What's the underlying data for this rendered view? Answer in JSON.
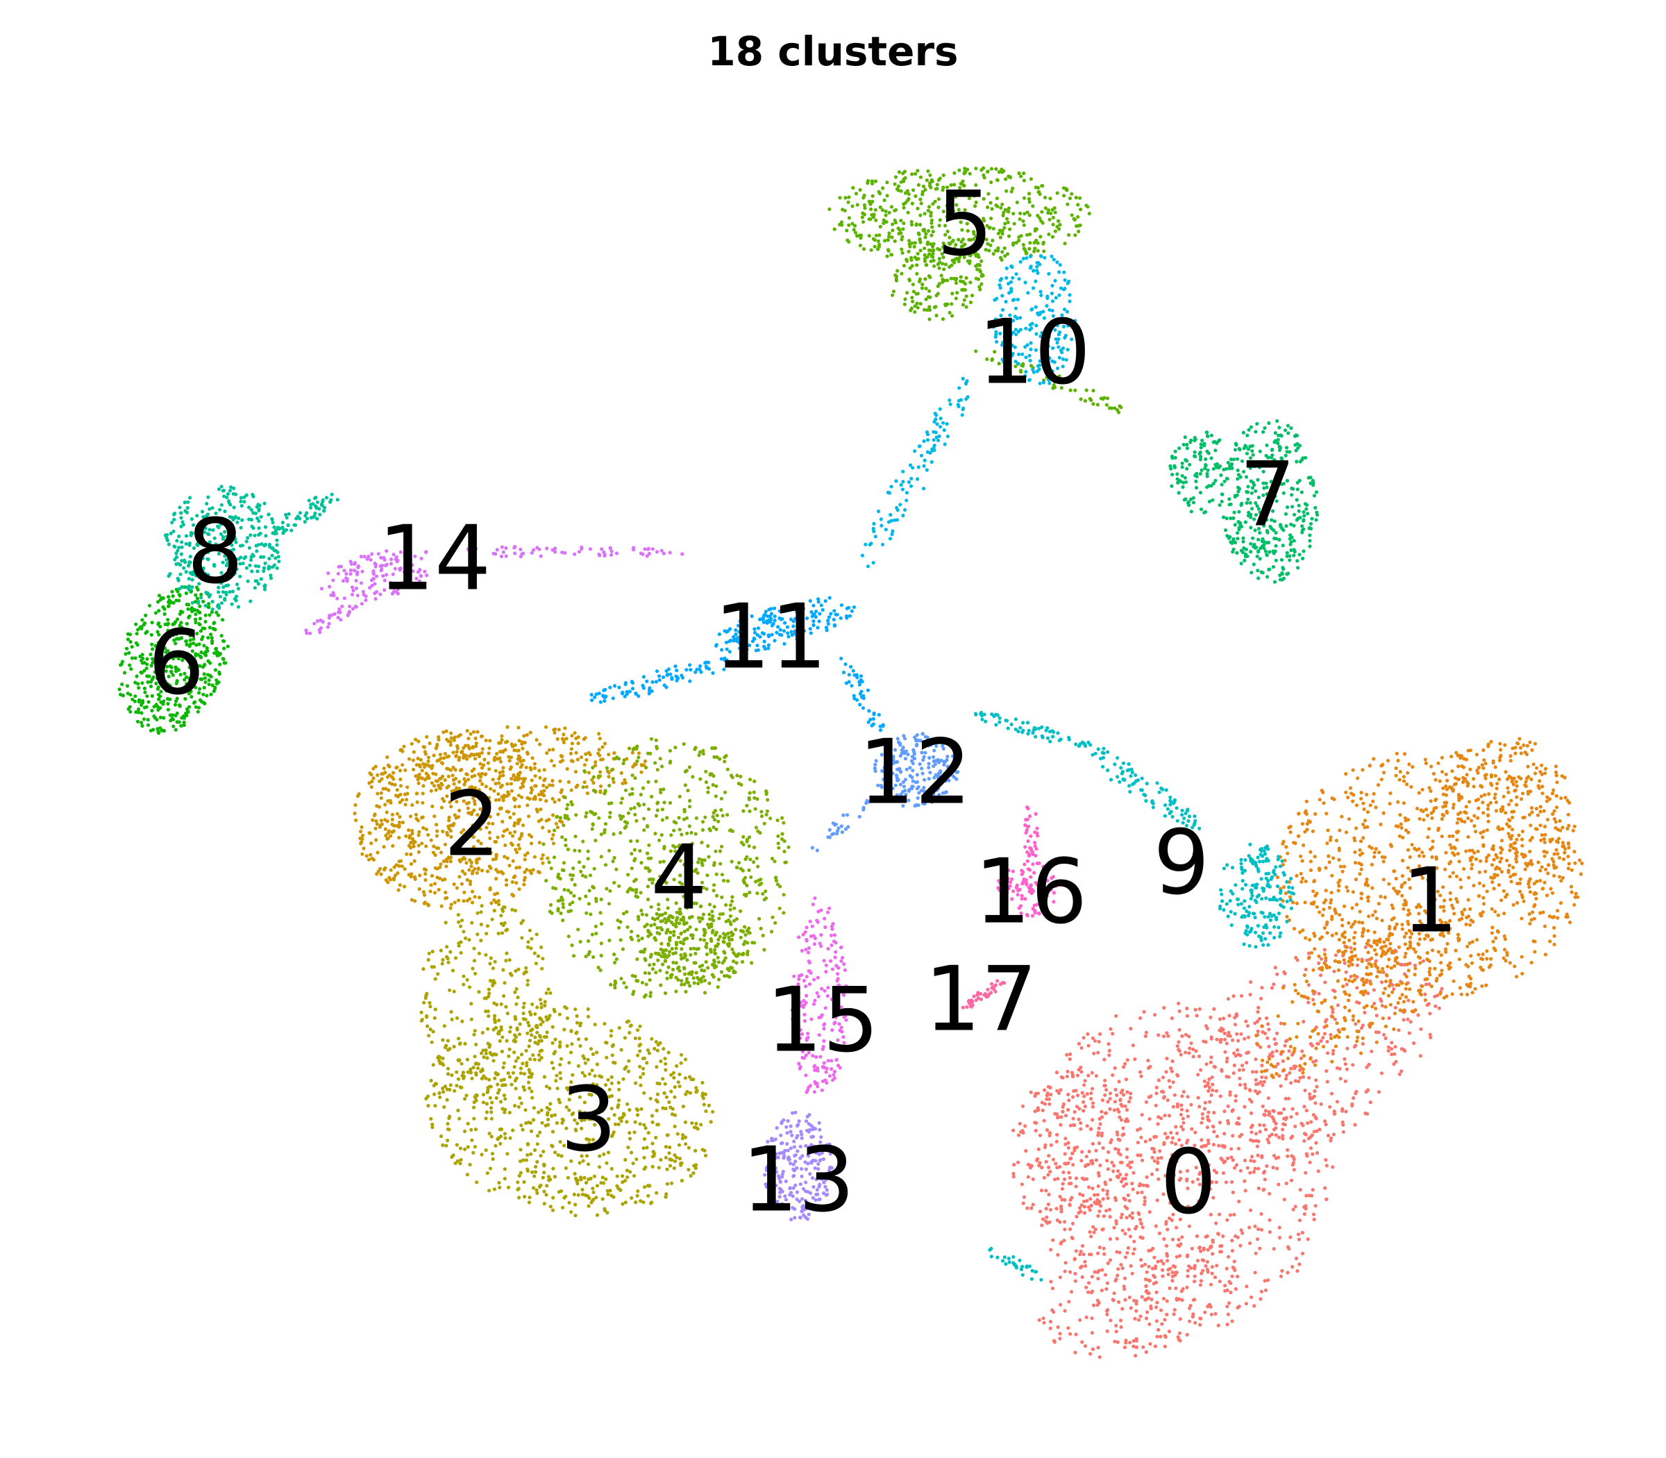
{
  "chart_data": {
    "type": "scatter",
    "title": "18 clusters",
    "xlabel": "",
    "ylabel": "",
    "grid": false,
    "axes_visible": false,
    "legend": "none",
    "point_size": "small",
    "clusters": [
      {
        "name": "0",
        "color": "#F8766D"
      },
      {
        "name": "1",
        "color": "#E68613"
      },
      {
        "name": "2",
        "color": "#CD9600"
      },
      {
        "name": "3",
        "color": "#ABA300"
      },
      {
        "name": "4",
        "color": "#7CAE00"
      },
      {
        "name": "5",
        "color": "#5BB300"
      },
      {
        "name": "6",
        "color": "#0CB702"
      },
      {
        "name": "7",
        "color": "#00BE67"
      },
      {
        "name": "8",
        "color": "#00C19A"
      },
      {
        "name": "9",
        "color": "#00BFC4"
      },
      {
        "name": "10",
        "color": "#00B8E7"
      },
      {
        "name": "11",
        "color": "#00A9FF"
      },
      {
        "name": "12",
        "color": "#619CFF"
      },
      {
        "name": "13",
        "color": "#A58AFF"
      },
      {
        "name": "14",
        "color": "#DB72FB"
      },
      {
        "name": "15",
        "color": "#ED68ED"
      },
      {
        "name": "16",
        "color": "#FF61CC"
      },
      {
        "name": "17",
        "color": "#FF68A1"
      }
    ]
  }
}
